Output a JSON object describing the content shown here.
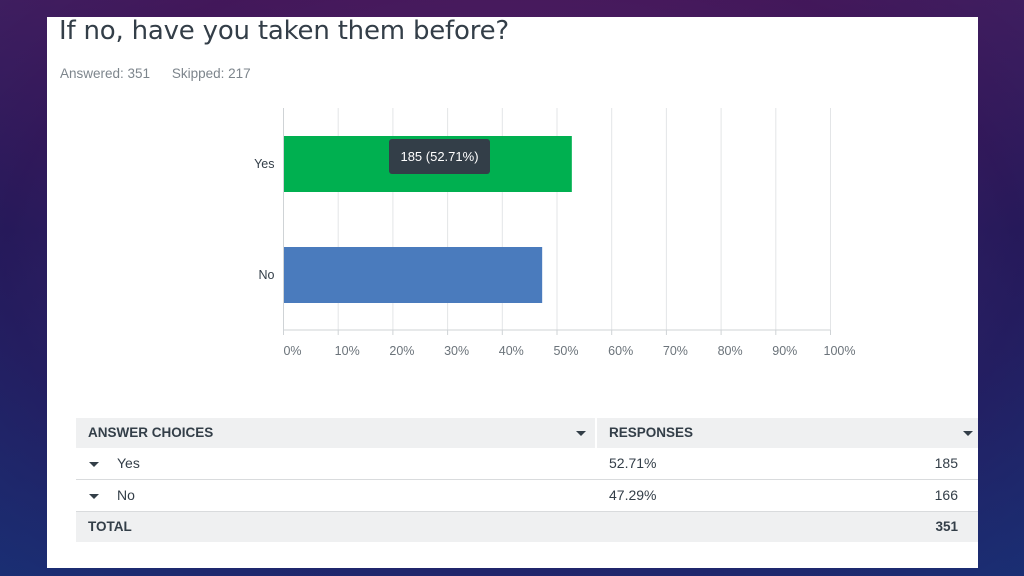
{
  "question": {
    "title": "If no, have you taken them before?",
    "answered_label": "Answered: 351",
    "skipped_label": "Skipped: 217"
  },
  "chart_data": {
    "type": "bar",
    "orientation": "horizontal",
    "categories": [
      "Yes",
      "No"
    ],
    "values": [
      52.71,
      47.29
    ],
    "value_unit": "%",
    "xlim": [
      0,
      100
    ],
    "x_ticks": [
      "0%",
      "10%",
      "20%",
      "30%",
      "40%",
      "50%",
      "60%",
      "70%",
      "80%",
      "90%",
      "100%"
    ],
    "grid": true,
    "colors": [
      "#00b050",
      "#4a7bbd"
    ],
    "tooltip": {
      "category": "Yes",
      "text": "185 (52.71%)"
    }
  },
  "table": {
    "headers": {
      "choices": "ANSWER CHOICES",
      "responses": "RESPONSES"
    },
    "rows": [
      {
        "choice": "Yes",
        "percent": "52.71%",
        "count": "185"
      },
      {
        "choice": "No",
        "percent": "47.29%",
        "count": "166"
      }
    ],
    "total": {
      "label": "TOTAL",
      "count": "351"
    }
  }
}
